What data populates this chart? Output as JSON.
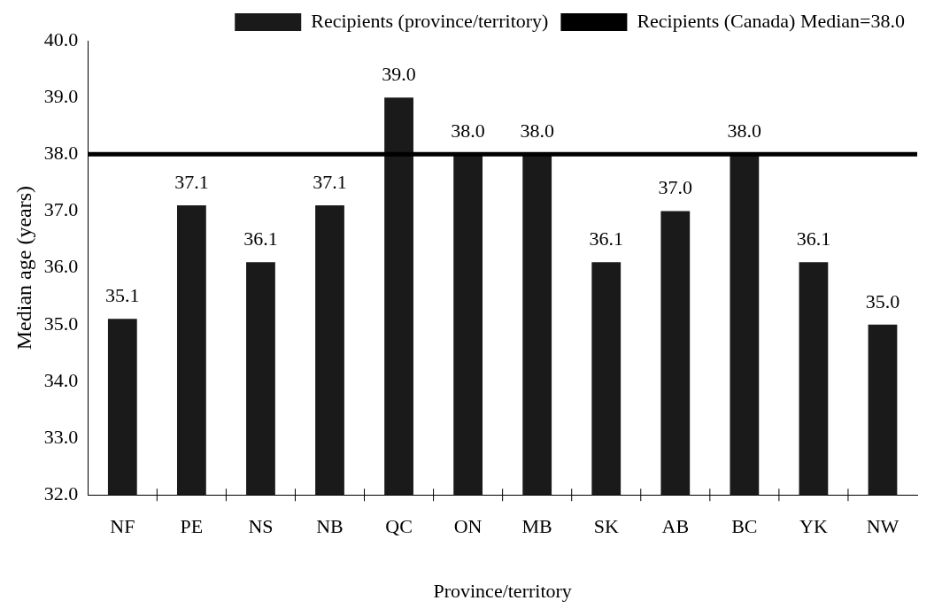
{
  "chart_data": {
    "type": "bar",
    "xlabel": "Province/territory",
    "ylabel": "Median age (years)",
    "categories": [
      "NF",
      "PE",
      "NS",
      "NB",
      "QC",
      "ON",
      "MB",
      "SK",
      "AB",
      "BC",
      "YK",
      "NW"
    ],
    "series": [
      {
        "name": "Recipients (province/territory)",
        "color": "#1a1a1a",
        "values": [
          35.1,
          37.1,
          36.1,
          37.1,
          39.0,
          38.0,
          38.0,
          36.1,
          37.0,
          38.0,
          36.1,
          35.0
        ],
        "value_labels": [
          "35.1",
          "37.1",
          "36.1",
          "37.1",
          "39.0",
          "38.0",
          "38.0",
          "36.1",
          "37.0",
          "38.0",
          "36.1",
          "35.0"
        ]
      }
    ],
    "ylim": [
      32,
      40
    ],
    "yticks": [
      {
        "value": 32,
        "label": "32.0"
      },
      {
        "value": 33,
        "label": "33.0"
      },
      {
        "value": 34,
        "label": "34.0"
      },
      {
        "value": 35,
        "label": "35.0"
      },
      {
        "value": 36,
        "label": "36.0"
      },
      {
        "value": 37,
        "label": "37.0"
      },
      {
        "value": 38,
        "label": "38.0"
      },
      {
        "value": 39,
        "label": "39.0"
      },
      {
        "value": 40,
        "label": "40.0"
      }
    ],
    "ref_lines": [
      {
        "axis": "y",
        "value": 38.0,
        "label": "Recipients (Canada) Median=38.0",
        "color": "#000000",
        "line_style": "solid"
      }
    ],
    "grid": false,
    "legend": "top right"
  }
}
